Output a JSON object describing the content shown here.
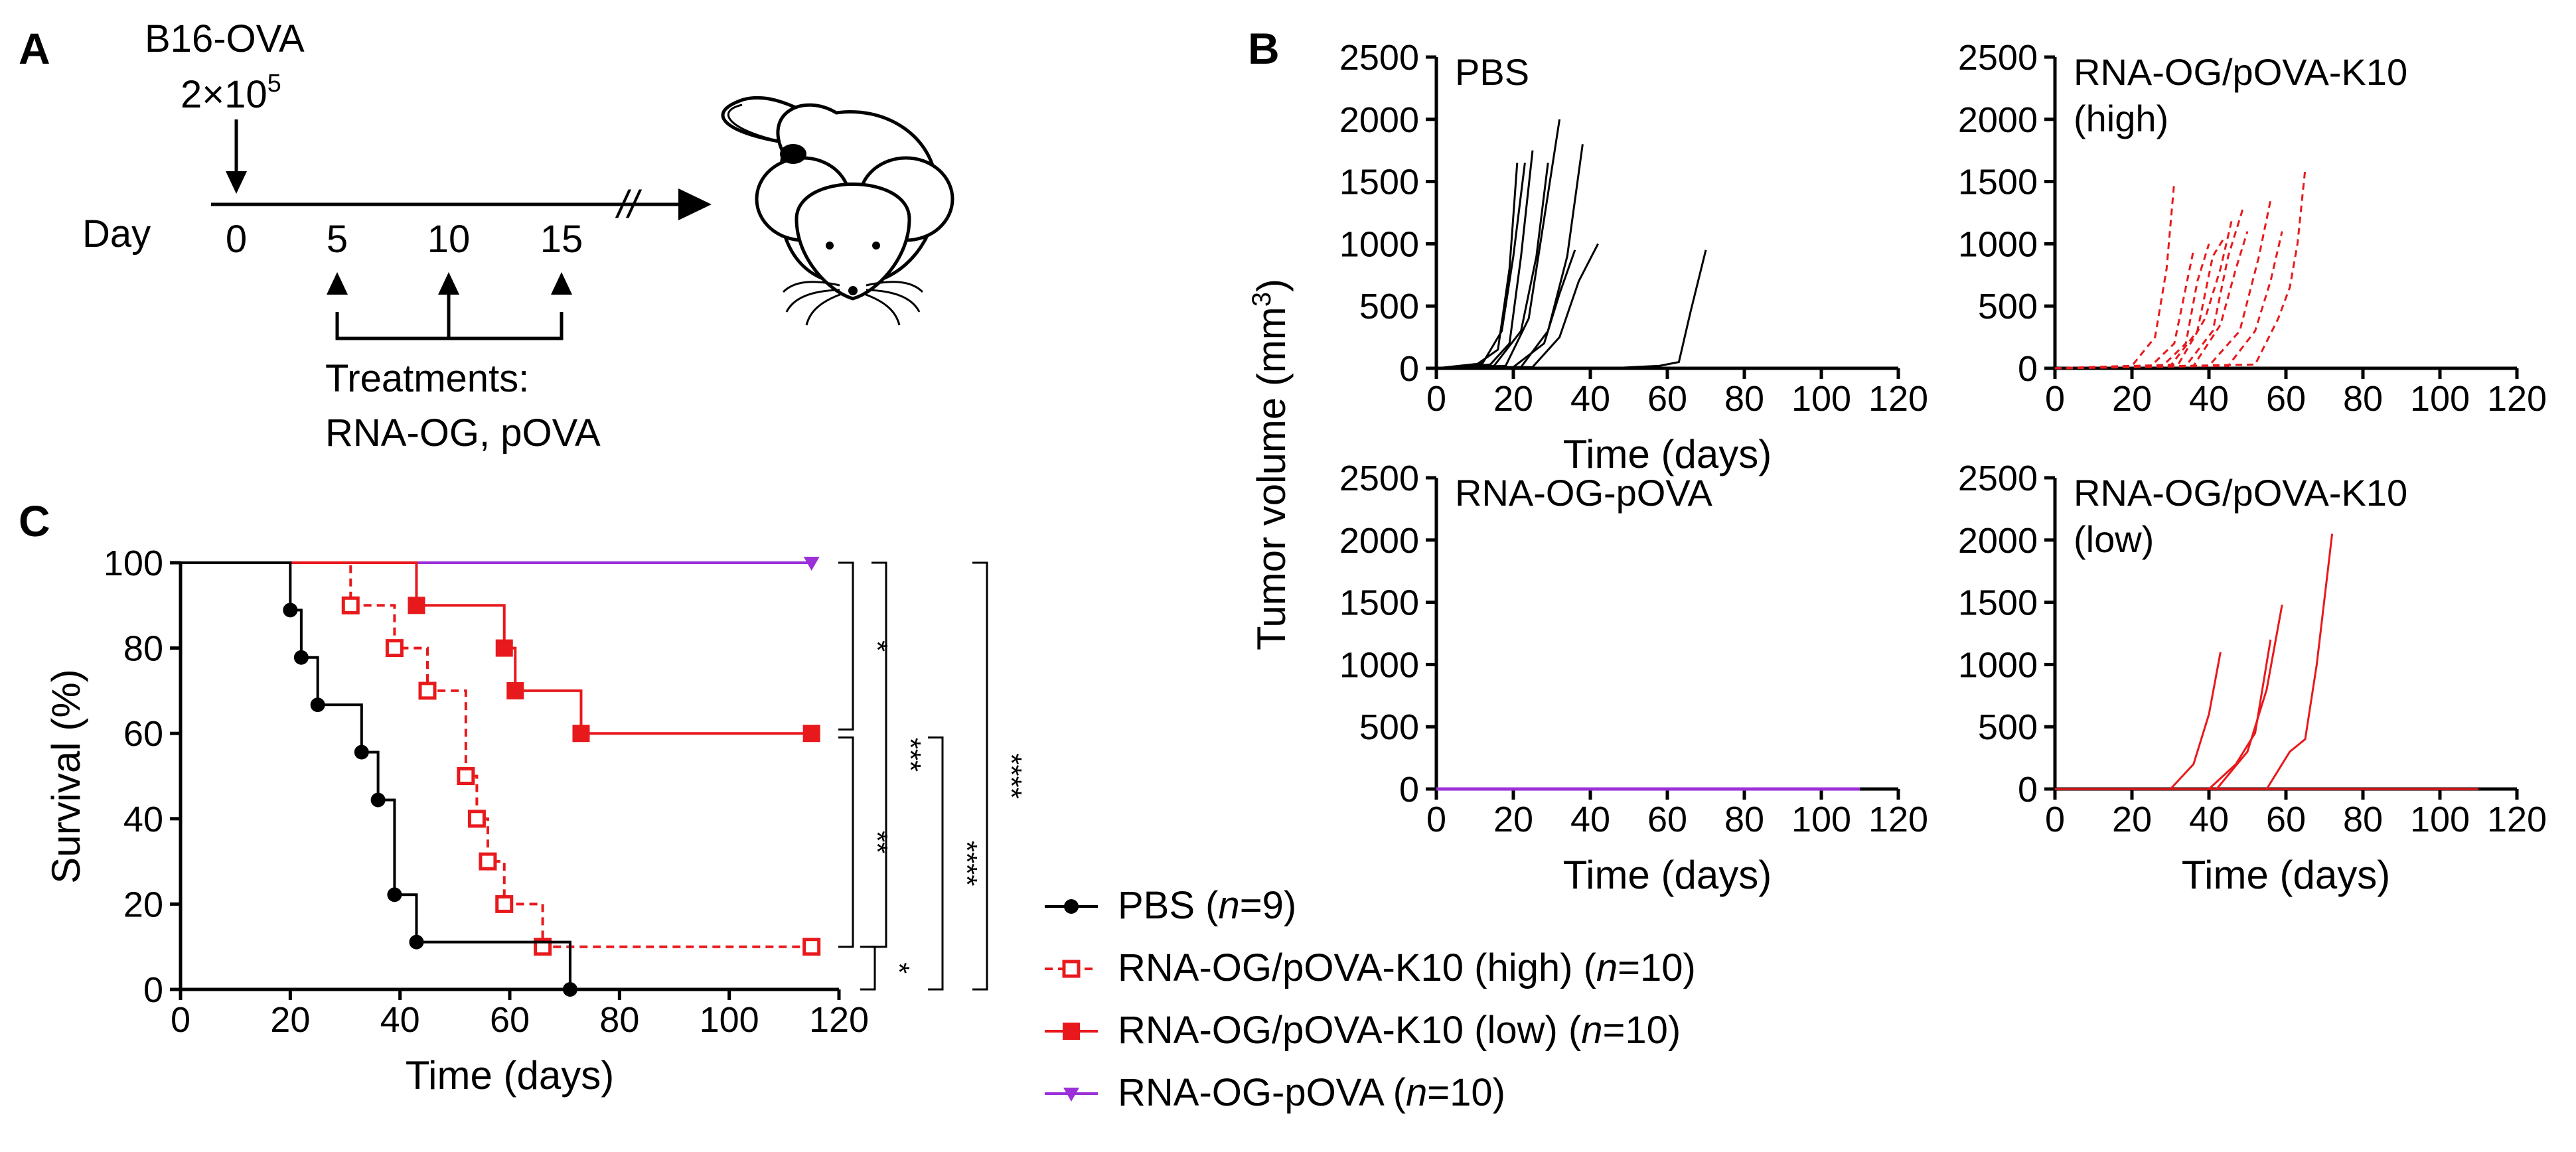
{
  "panels": {
    "a": "A",
    "b": "B",
    "c": "C"
  },
  "schematic": {
    "cells_label": "B16-OVA",
    "dose": "2×10",
    "dose_exp": "5",
    "day_label": "Day",
    "days": [
      "0",
      "5",
      "10",
      "15"
    ],
    "break_mark": "//",
    "treat_title": "Treatments:",
    "treat_list": "RNA-OG, pOVA",
    "icon": "mouse-icon"
  },
  "colors": {
    "black": "#000000",
    "red": "#e8191c",
    "purple": "#9b30d9"
  },
  "chart_data": [
    {
      "type": "line",
      "panel": "B",
      "title": "PBS",
      "xlabel": "Time (days)",
      "ylabel": "Tumor volume (mm",
      "ylabel_sup": "3",
      "ylabel_close": ")",
      "xlim": [
        0,
        120
      ],
      "ylim": [
        0,
        2500
      ],
      "xticks": [
        "0",
        "20",
        "40",
        "60",
        "80",
        "100",
        "120"
      ],
      "yticks": [
        "0",
        "500",
        "1000",
        "1500",
        "2000",
        "2500"
      ],
      "color": "#000000",
      "dashed": false,
      "series": [
        {
          "name": "m1",
          "x": [
            0,
            10,
            16,
            19,
            21
          ],
          "y": [
            0,
            20,
            150,
            800,
            1650
          ]
        },
        {
          "name": "m2",
          "x": [
            0,
            12,
            17,
            20,
            23
          ],
          "y": [
            0,
            40,
            300,
            900,
            1650
          ]
        },
        {
          "name": "m3",
          "x": [
            0,
            14,
            19,
            22,
            25
          ],
          "y": [
            0,
            30,
            200,
            900,
            1750
          ]
        },
        {
          "name": "m4",
          "x": [
            0,
            15,
            22,
            26,
            29
          ],
          "y": [
            0,
            20,
            300,
            900,
            1650
          ]
        },
        {
          "name": "m5",
          "x": [
            0,
            18,
            24,
            28,
            32
          ],
          "y": [
            0,
            20,
            400,
            1200,
            2000
          ]
        },
        {
          "name": "m6",
          "x": [
            0,
            20,
            28,
            32,
            36
          ],
          "y": [
            0,
            10,
            200,
            600,
            950
          ]
        },
        {
          "name": "m7",
          "x": [
            0,
            22,
            29,
            34,
            38
          ],
          "y": [
            0,
            10,
            300,
            900,
            1800
          ]
        },
        {
          "name": "m8",
          "x": [
            0,
            25,
            32,
            37,
            42
          ],
          "y": [
            0,
            10,
            250,
            700,
            1000
          ]
        },
        {
          "name": "m9",
          "x": [
            0,
            45,
            58,
            63,
            66,
            70
          ],
          "y": [
            0,
            0,
            20,
            50,
            450,
            950
          ]
        }
      ]
    },
    {
      "type": "line",
      "panel": "B",
      "title": "RNA-OG/pOVA-K10",
      "title2": "(high)",
      "xlabel": "",
      "ylabel": "",
      "xlim": [
        0,
        120
      ],
      "ylim": [
        0,
        2500
      ],
      "xticks": [
        "0",
        "20",
        "40",
        "60",
        "80",
        "100",
        "120"
      ],
      "yticks": [
        "0",
        "500",
        "1000",
        "1500",
        "2000",
        "2500"
      ],
      "color": "#e8191c",
      "dashed": true,
      "series": [
        {
          "name": "m1",
          "x": [
            0,
            20,
            26,
            29,
            31
          ],
          "y": [
            0,
            20,
            250,
            800,
            1500
          ]
        },
        {
          "name": "m2",
          "x": [
            0,
            25,
            31,
            34,
            36
          ],
          "y": [
            0,
            20,
            200,
            650,
            950
          ]
        },
        {
          "name": "m3",
          "x": [
            0,
            28,
            34,
            37,
            40
          ],
          "y": [
            0,
            20,
            200,
            700,
            1000
          ]
        },
        {
          "name": "m4",
          "x": [
            0,
            30,
            37,
            41,
            44
          ],
          "y": [
            0,
            20,
            300,
            900,
            1050
          ]
        },
        {
          "name": "m5",
          "x": [
            0,
            32,
            39,
            43,
            46
          ],
          "y": [
            0,
            30,
            400,
            800,
            1200
          ]
        },
        {
          "name": "m6",
          "x": [
            0,
            34,
            41,
            45,
            49
          ],
          "y": [
            0,
            20,
            300,
            900,
            1300
          ]
        },
        {
          "name": "m7",
          "x": [
            0,
            36,
            43,
            47,
            50
          ],
          "y": [
            0,
            20,
            350,
            800,
            1100
          ]
        },
        {
          "name": "m8",
          "x": [
            0,
            40,
            48,
            53,
            56
          ],
          "y": [
            0,
            20,
            300,
            900,
            1350
          ]
        },
        {
          "name": "m9",
          "x": [
            0,
            45,
            52,
            56,
            59
          ],
          "y": [
            0,
            20,
            300,
            700,
            1100
          ]
        },
        {
          "name": "m10",
          "x": [
            0,
            52,
            58,
            61,
            63,
            65
          ],
          "y": [
            0,
            30,
            400,
            650,
            1000,
            1600
          ]
        }
      ]
    },
    {
      "type": "line",
      "panel": "B",
      "title": "RNA-OG-pOVA",
      "xlabel": "Time (days)",
      "ylabel": "",
      "xlim": [
        0,
        120
      ],
      "ylim": [
        0,
        2500
      ],
      "xticks": [
        "0",
        "20",
        "40",
        "60",
        "80",
        "100",
        "120"
      ],
      "yticks": [
        "0",
        "500",
        "1000",
        "1500",
        "2000",
        "2500"
      ],
      "color": "#9b30d9",
      "dashed": false,
      "series": [
        {
          "name": "all",
          "x": [
            0,
            110
          ],
          "y": [
            0,
            0
          ]
        }
      ]
    },
    {
      "type": "line",
      "panel": "B",
      "title": "RNA-OG/pOVA-K10",
      "title2": "(low)",
      "xlabel": "Time (days)",
      "ylabel": "",
      "xlim": [
        0,
        120
      ],
      "ylim": [
        0,
        2500
      ],
      "xticks": [
        "0",
        "20",
        "40",
        "60",
        "80",
        "100",
        "120"
      ],
      "yticks": [
        "0",
        "500",
        "1000",
        "1500",
        "2000",
        "2500"
      ],
      "color": "#e8191c",
      "dashed": false,
      "series": [
        {
          "name": "m1",
          "x": [
            0,
            30,
            36,
            40,
            43
          ],
          "y": [
            0,
            0,
            200,
            600,
            1100
          ]
        },
        {
          "name": "m2",
          "x": [
            0,
            40,
            47,
            52,
            56
          ],
          "y": [
            0,
            0,
            200,
            450,
            1200
          ]
        },
        {
          "name": "m3",
          "x": [
            0,
            42,
            50,
            55,
            59
          ],
          "y": [
            0,
            0,
            300,
            800,
            1480
          ]
        },
        {
          "name": "m4",
          "x": [
            0,
            55,
            61,
            65,
            68,
            72
          ],
          "y": [
            0,
            0,
            300,
            400,
            1000,
            2050
          ]
        },
        {
          "name": "flat",
          "x": [
            0,
            110
          ],
          "y": [
            0,
            0
          ]
        }
      ]
    },
    {
      "type": "line",
      "panel": "C",
      "title": "",
      "xlabel": "Time (days)",
      "ylabel": "Survival (%)",
      "xlim": [
        0,
        120
      ],
      "ylim": [
        0,
        100
      ],
      "xticks": [
        "0",
        "20",
        "40",
        "60",
        "80",
        "100",
        "120"
      ],
      "yticks": [
        "0",
        "20",
        "40",
        "60",
        "80",
        "100"
      ],
      "series": [
        {
          "name": "PBS",
          "n": "9",
          "color": "#000000",
          "marker": "circle",
          "dashed": false,
          "steps": [
            [
              0,
              100
            ],
            [
              20,
              88.9
            ],
            [
              22,
              77.8
            ],
            [
              25,
              66.7
            ],
            [
              33,
              55.6
            ],
            [
              36,
              44.4
            ],
            [
              39,
              22.2
            ],
            [
              43,
              11.1
            ],
            [
              71,
              0
            ]
          ]
        },
        {
          "name": "RNA-OG/pOVA-K10 (high)",
          "n": "10",
          "color": "#e8191c",
          "marker": "open-square",
          "dashed": true,
          "steps": [
            [
              0,
              100
            ],
            [
              31,
              90
            ],
            [
              39,
              80
            ],
            [
              45,
              70
            ],
            [
              52,
              50
            ],
            [
              54,
              40
            ],
            [
              56,
              30
            ],
            [
              59,
              20
            ],
            [
              66,
              10
            ]
          ],
          "end": [
            115,
            10
          ]
        },
        {
          "name": "RNA-OG/pOVA-K10 (low)",
          "n": "10",
          "color": "#e8191c",
          "marker": "square",
          "dashed": false,
          "steps": [
            [
              0,
              100
            ],
            [
              43,
              90
            ],
            [
              59,
              80
            ],
            [
              61,
              70
            ],
            [
              73,
              60
            ]
          ],
          "end": [
            115,
            60
          ]
        },
        {
          "name": "RNA-OG-pOVA",
          "n": "10",
          "color": "#9b30d9",
          "marker": "triangle-down",
          "dashed": false,
          "steps": [
            [
              0,
              100
            ]
          ],
          "end": [
            115,
            100
          ]
        }
      ],
      "significance": [
        {
          "label": "*",
          "y1": 100,
          "y2": 60
        },
        {
          "label": "**",
          "y1": 60,
          "y2": 10
        },
        {
          "label": "*",
          "y1": 10,
          "y2": 0
        },
        {
          "label": "***",
          "y1": 100,
          "y2": 10
        },
        {
          "label": "****",
          "y1": 60,
          "y2": 0
        },
        {
          "label": "****",
          "y1": 100,
          "y2": 0
        }
      ]
    }
  ],
  "legend": [
    {
      "name": "PBS",
      "n_prefix": " (",
      "n_var": "n",
      "n_value": "=9)"
    },
    {
      "name": "RNA-OG/pOVA-K10 (high)",
      "n_prefix": " (",
      "n_var": "n",
      "n_value": "=10)"
    },
    {
      "name": "RNA-OG/pOVA-K10 (low)",
      "n_prefix": " (",
      "n_var": "n",
      "n_value": "=10)"
    },
    {
      "name": "RNA-OG-pOVA",
      "n_prefix": " (",
      "n_var": "n",
      "n_value": "=10)"
    }
  ]
}
